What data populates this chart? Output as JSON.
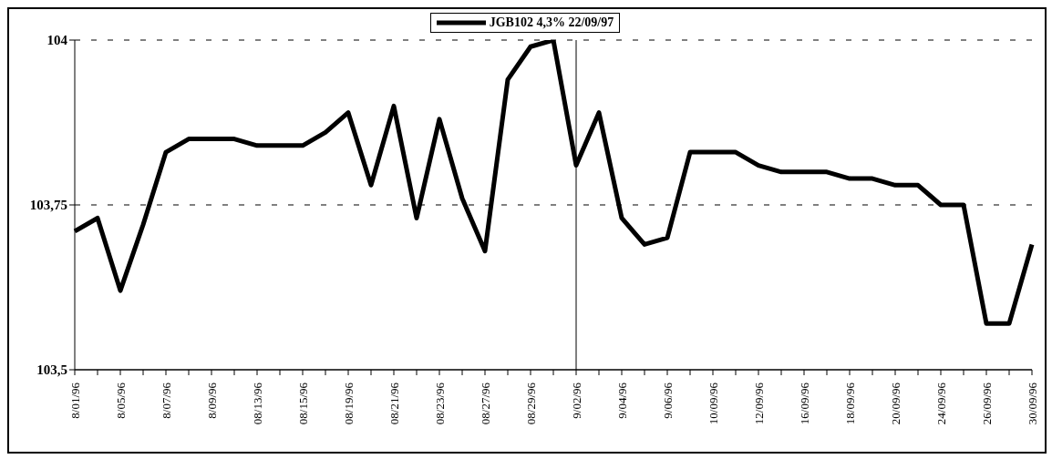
{
  "chart_data": {
    "type": "line",
    "categories": [
      "8/01/96",
      null,
      "8/05/96",
      null,
      "8/07/96",
      null,
      "8/09/96",
      null,
      "08/13/96",
      null,
      "08/15/96",
      null,
      "08/19/96",
      null,
      "08/21/96",
      null,
      "08/23/96",
      null,
      "08/27/96",
      null,
      "08/29/96",
      null,
      "9/02/96",
      null,
      "9/04/96",
      null,
      "9/06/96",
      null,
      "10/09/96",
      null,
      "12/09/96",
      null,
      "16/09/96",
      null,
      "18/09/96",
      null,
      "20/09/96",
      null,
      "24/09/96",
      null,
      "26/09/96",
      null,
      "30/09/96"
    ],
    "series": [
      {
        "name": "JGB102 4,3% 22/09/97",
        "color": "#000000",
        "values": [
          103.71,
          103.73,
          103.62,
          103.72,
          103.83,
          103.85,
          103.85,
          103.85,
          103.84,
          103.84,
          103.84,
          103.86,
          103.89,
          103.78,
          103.9,
          103.73,
          103.88,
          103.76,
          103.68,
          103.94,
          103.99,
          104.0,
          103.81,
          103.89,
          103.73,
          103.69,
          103.7,
          103.83,
          103.83,
          103.83,
          103.81,
          103.8,
          103.8,
          103.8,
          103.79,
          103.79,
          103.78,
          103.78,
          103.75,
          103.75,
          103.57,
          103.57,
          103.69
        ]
      }
    ],
    "ylim": [
      103.5,
      104
    ],
    "yticks": [
      {
        "value": 103.5,
        "label": "103,5"
      },
      {
        "value": 103.75,
        "label": "103,75"
      },
      {
        "value": 104,
        "label": "104"
      }
    ],
    "legend": "top",
    "marker": "none",
    "line_style": "solid",
    "ref_lines": [
      {
        "axis": "x",
        "value": "9/02/96",
        "color": "#000000"
      },
      {
        "axis": "y",
        "value": 103.75,
        "color": "#000000",
        "line_style": "dashed"
      },
      {
        "axis": "y",
        "value": 104,
        "color": "#000000",
        "line_style": "dashed"
      }
    ]
  }
}
